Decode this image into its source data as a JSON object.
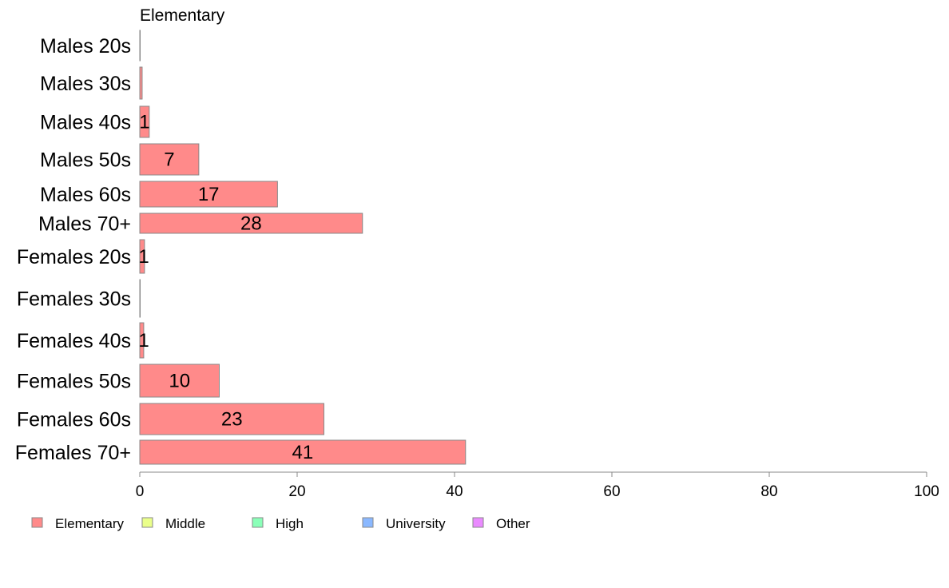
{
  "chart_data": {
    "type": "bar",
    "orientation": "horizontal",
    "title": "Elementary",
    "categories": [
      "Males 20s",
      "Males 30s",
      "Males 40s",
      "Males 50s",
      "Males 60s",
      "Males 70+",
      "Females 20s",
      "Females 30s",
      "Females 40s",
      "Females 50s",
      "Females 60s",
      "Females 70+"
    ],
    "series": [
      {
        "name": "Elementary",
        "color": "#ff8a8a",
        "values": [
          0,
          0.3,
          1.2,
          7.5,
          17.5,
          28.3,
          0.6,
          0,
          0.5,
          10.1,
          23.4,
          41.4
        ],
        "labels": [
          "",
          "",
          "1",
          "7",
          "17",
          "28",
          "1",
          "",
          "1",
          "10",
          "23",
          "41"
        ]
      }
    ],
    "xlim": [
      0,
      100
    ],
    "xticks": [
      0,
      20,
      40,
      60,
      80,
      100
    ],
    "grid": false,
    "legend": {
      "placement": "bottom-left",
      "items": [
        {
          "label": "Elementary",
          "color": "#ff8a8a"
        },
        {
          "label": "Middle",
          "color": "#eaff8a"
        },
        {
          "label": "High",
          "color": "#8affb8"
        },
        {
          "label": "University",
          "color": "#8ab8ff"
        },
        {
          "label": "Other",
          "color": "#ea8aff"
        }
      ]
    }
  }
}
